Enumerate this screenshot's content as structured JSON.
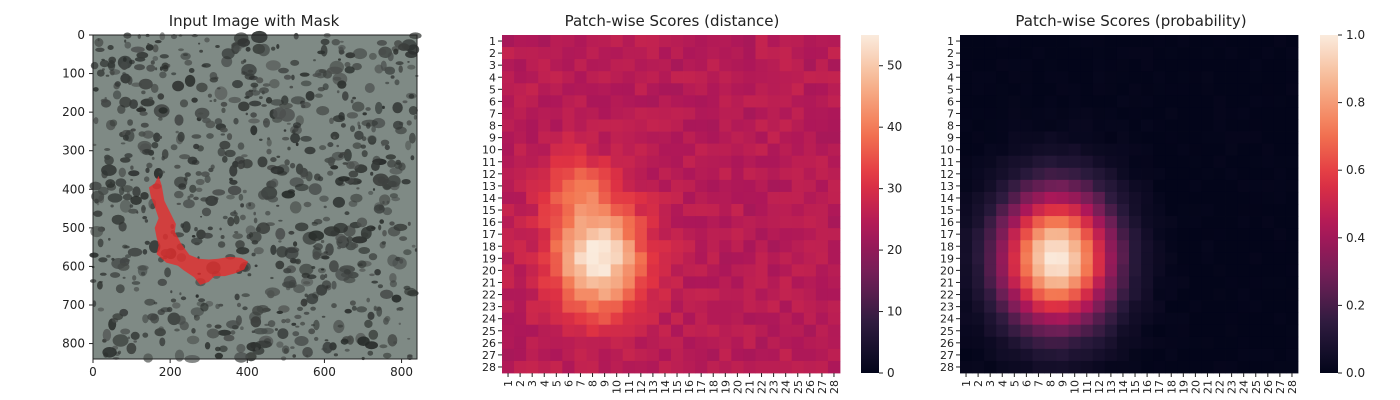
{
  "colors": {
    "rocket_stops": [
      "#03051a",
      "#2c1b3e",
      "#701f57",
      "#ad1759",
      "#e13342",
      "#f37651",
      "#f6b48f",
      "#faebdd"
    ],
    "mask_color": "#e82a2a",
    "texture_light": "#7f8a85",
    "texture_dark": "#2c302e"
  },
  "chart_data": [
    {
      "type": "image",
      "title": "Input Image with Mask",
      "xlim": [
        0,
        840
      ],
      "ylim": [
        840,
        0
      ],
      "xticks": [
        0,
        200,
        400,
        600,
        800
      ],
      "yticks": [
        0,
        100,
        200,
        300,
        400,
        500,
        600,
        700,
        800
      ],
      "mask_polygon": [
        [
          145,
          395
        ],
        [
          160,
          385
        ],
        [
          170,
          365
        ],
        [
          178,
          390
        ],
        [
          185,
          430
        ],
        [
          200,
          460
        ],
        [
          215,
          490
        ],
        [
          212,
          510
        ],
        [
          228,
          540
        ],
        [
          250,
          570
        ],
        [
          275,
          580
        ],
        [
          300,
          582
        ],
        [
          325,
          580
        ],
        [
          355,
          575
        ],
        [
          385,
          578
        ],
        [
          402,
          588
        ],
        [
          392,
          608
        ],
        [
          368,
          618
        ],
        [
          342,
          625
        ],
        [
          315,
          625
        ],
        [
          300,
          640
        ],
        [
          278,
          648
        ],
        [
          262,
          628
        ],
        [
          235,
          610
        ],
        [
          220,
          598
        ],
        [
          190,
          590
        ],
        [
          165,
          568
        ],
        [
          170,
          545
        ],
        [
          165,
          525
        ],
        [
          160,
          500
        ],
        [
          170,
          475
        ],
        [
          160,
          445
        ],
        [
          150,
          420
        ]
      ]
    },
    {
      "type": "heatmap",
      "title": "Patch-wise Scores (distance)",
      "rows": 28,
      "cols": 28,
      "row_labels": [
        "1",
        "2",
        "3",
        "4",
        "5",
        "6",
        "7",
        "8",
        "9",
        "10",
        "11",
        "12",
        "13",
        "14",
        "15",
        "16",
        "17",
        "18",
        "19",
        "20",
        "21",
        "22",
        "23",
        "24",
        "25",
        "26",
        "27",
        "28"
      ],
      "col_labels": [
        "1",
        "2",
        "3",
        "4",
        "5",
        "6",
        "7",
        "8",
        "9",
        "10",
        "11",
        "12",
        "13",
        "14",
        "15",
        "16",
        "17",
        "18",
        "19",
        "20",
        "21",
        "22",
        "23",
        "24",
        "25",
        "26",
        "27",
        "28"
      ],
      "colorbar": {
        "min": 0,
        "max": 55,
        "ticks": [
          0,
          10,
          20,
          30,
          40,
          50
        ],
        "tick_labels": [
          "0",
          "10",
          "20",
          "30",
          "40",
          "50"
        ]
      },
      "background_value": 25,
      "hotspots": [
        {
          "row": 19,
          "col": 8.5,
          "sigma_row": 3.2,
          "sigma_col": 2.6,
          "peak": 30
        },
        {
          "row": 13,
          "col": 6.5,
          "sigma_row": 2.0,
          "sigma_col": 2.0,
          "peak": 10
        }
      ]
    },
    {
      "type": "heatmap",
      "title": "Patch-wise Scores (probability)",
      "rows": 28,
      "cols": 28,
      "row_labels": [
        "1",
        "2",
        "3",
        "4",
        "5",
        "6",
        "7",
        "8",
        "9",
        "10",
        "11",
        "12",
        "13",
        "14",
        "15",
        "16",
        "17",
        "18",
        "19",
        "20",
        "21",
        "22",
        "23",
        "24",
        "25",
        "26",
        "27",
        "28"
      ],
      "col_labels": [
        "1",
        "2",
        "3",
        "4",
        "5",
        "6",
        "7",
        "8",
        "9",
        "10",
        "11",
        "12",
        "13",
        "14",
        "15",
        "16",
        "17",
        "18",
        "19",
        "20",
        "21",
        "22",
        "23",
        "24",
        "25",
        "26",
        "27",
        "28"
      ],
      "colorbar": {
        "min": 0,
        "max": 1,
        "ticks": [
          0,
          0.2,
          0.4,
          0.6,
          0.8,
          1.0
        ],
        "tick_labels": [
          "0.0",
          "0.2",
          "0.4",
          "0.6",
          "0.8",
          "1.0"
        ]
      },
      "background_value": 0,
      "hotspots": [
        {
          "row": 19,
          "col": 8.5,
          "sigma_row": 3.8,
          "sigma_col": 3.2,
          "peak": 1.0
        }
      ]
    }
  ]
}
